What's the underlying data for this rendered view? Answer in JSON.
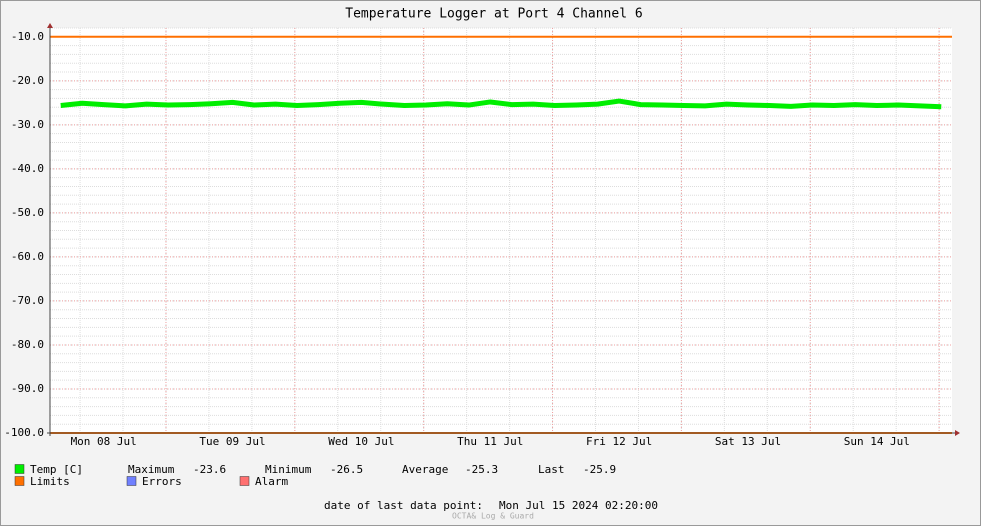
{
  "chart_data": {
    "type": "line",
    "title": "Temperature Logger at Port 4 Channel 6",
    "categories": [
      null,
      null,
      "Mon 08 Jul",
      null,
      null,
      null,
      null,
      null,
      "Tue 09 Jul",
      null,
      null,
      null,
      null,
      null,
      "Wed 10 Jul",
      null,
      null,
      null,
      null,
      null,
      "Thu 11 Jul",
      null,
      null,
      null,
      null,
      null,
      "Fri 12 Jul",
      null,
      null,
      null,
      null,
      null,
      "Sat 13 Jul",
      null,
      null,
      null,
      null,
      null,
      "Sun 14 Jul",
      null,
      null,
      null
    ],
    "series": [
      {
        "name": "Temp [C]",
        "color": "#00ee00",
        "values": [
          -25.6,
          -25.1,
          -25.4,
          -25.7,
          -25.3,
          -25.5,
          -25.4,
          -25.2,
          -24.9,
          -25.5,
          -25.3,
          -25.6,
          -25.4,
          -25.1,
          -24.9,
          -25.3,
          -25.6,
          -25.5,
          -25.2,
          -25.5,
          -24.8,
          -25.4,
          -25.3,
          -25.6,
          -25.5,
          -25.3,
          -24.6,
          -25.4,
          -25.5,
          -25.6,
          -25.7,
          -25.3,
          -25.5,
          -25.6,
          -25.8,
          -25.5,
          -25.6,
          -25.4,
          -25.6,
          -25.5,
          -25.7,
          -25.9
        ]
      }
    ],
    "limits": {
      "name": "Limits",
      "color": "#ff7000",
      "values": [
        -10,
        -100
      ]
    },
    "legend_extra": [
      {
        "name": "Errors",
        "color": "#7080ff"
      },
      {
        "name": "Alarm",
        "color": "#ff7070"
      }
    ],
    "stats": [
      {
        "label": "Maximum",
        "value": -23.6
      },
      {
        "label": "Minimum",
        "value": -26.5
      },
      {
        "label": "Average",
        "value": -25.3
      },
      {
        "label": "Last",
        "value": -25.9
      }
    ],
    "ylim": [
      -100,
      -8
    ],
    "yticks": [
      {
        "value": -100,
        "label": "-100.0"
      },
      {
        "value": -90,
        "label": "-90.0"
      },
      {
        "value": -80,
        "label": "-80.0"
      },
      {
        "value": -70,
        "label": "-70.0"
      },
      {
        "value": -60,
        "label": "-60.0"
      },
      {
        "value": -50,
        "label": "-50.0"
      },
      {
        "value": -40,
        "label": "-40.0"
      },
      {
        "value": -30,
        "label": "-30.0"
      },
      {
        "value": -20,
        "label": "-20.0"
      },
      {
        "value": -10,
        "label": "-10.0"
      }
    ],
    "grid": true,
    "footer": {
      "label": "date of last data point:",
      "value": "Mon Jul 15 2024 02:20:00"
    },
    "watermark": "OCTA& Log & Guard"
  }
}
